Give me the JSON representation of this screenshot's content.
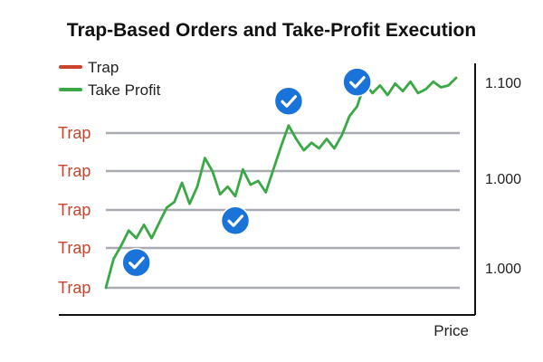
{
  "chart_data": {
    "type": "line",
    "title": "Trap-Based Orders and Take-Profit Execution",
    "xlabel": "Price",
    "ylabel": "",
    "legend": {
      "placement": "top-left",
      "entries": [
        {
          "label": "Trap",
          "color": "#c9442b"
        },
        {
          "label": "Take Profit",
          "color": "#3aa845"
        }
      ]
    },
    "trap_labels": [
      "Trap",
      "Trap",
      "Trap",
      "Trap",
      "Trap"
    ],
    "trap_label_color": "#c9442b",
    "trap_line_color": "#a9abb3",
    "right_tick_labels": [
      "1.100",
      "1.000",
      "1.000"
    ],
    "series": [
      {
        "name": "Take Profit",
        "color": "#3aa845",
        "points": [
          [
            0,
            0
          ],
          [
            1,
            1.5
          ],
          [
            2,
            2.2
          ],
          [
            3,
            3
          ],
          [
            4,
            2.6
          ],
          [
            5,
            3.3
          ],
          [
            6,
            2.6
          ],
          [
            7,
            3.4
          ],
          [
            8,
            4.2
          ],
          [
            9,
            4.5
          ],
          [
            10,
            5.5
          ],
          [
            11,
            4.4
          ],
          [
            12,
            5.3
          ],
          [
            13,
            6.8
          ],
          [
            14,
            6.1
          ],
          [
            15,
            4.9
          ],
          [
            16,
            5.3
          ],
          [
            17,
            4.8
          ],
          [
            18,
            6.2
          ],
          [
            19,
            5.4
          ],
          [
            20,
            5.6
          ],
          [
            21,
            5.0
          ],
          [
            22,
            6.2
          ],
          [
            23,
            7.4
          ],
          [
            24,
            8.5
          ],
          [
            25,
            7.8
          ],
          [
            26,
            7.2
          ],
          [
            27,
            7.6
          ],
          [
            28,
            7.3
          ],
          [
            29,
            7.8
          ],
          [
            30,
            7.3
          ],
          [
            31,
            8.0
          ],
          [
            32,
            9.0
          ],
          [
            33,
            9.5
          ],
          [
            34,
            10.7
          ],
          [
            35,
            10.2
          ],
          [
            36,
            10.6
          ],
          [
            37,
            10.1
          ],
          [
            38,
            10.7
          ],
          [
            39,
            10.3
          ],
          [
            40,
            10.8
          ],
          [
            41,
            10.2
          ],
          [
            42,
            10.4
          ],
          [
            43,
            10.8
          ],
          [
            44,
            10.5
          ],
          [
            45,
            10.6
          ],
          [
            46,
            11.0
          ]
        ]
      }
    ],
    "take_profit_markers": [
      {
        "index": 4,
        "label_position": "below"
      },
      {
        "index": 17,
        "label_position": "below"
      },
      {
        "index": 24,
        "label_position": "above"
      },
      {
        "index": 33,
        "label_position": "above"
      }
    ],
    "marker_color": "#1a73d9",
    "grid": false
  }
}
